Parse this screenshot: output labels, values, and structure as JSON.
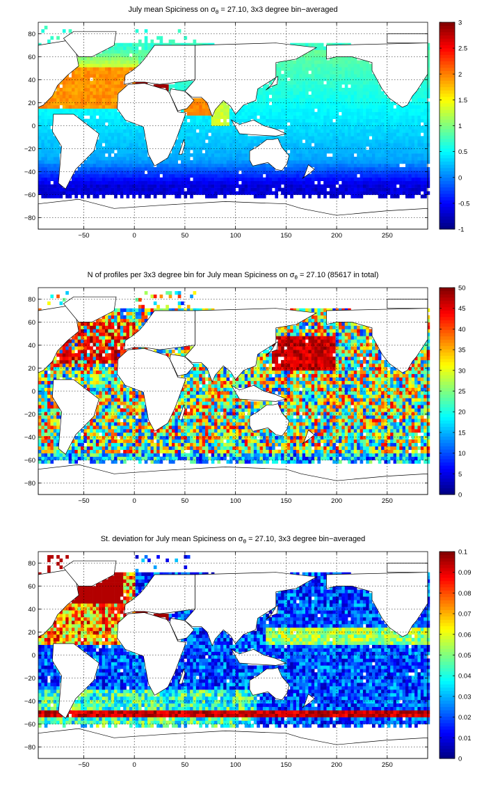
{
  "chart_data": [
    {
      "type": "heatmap",
      "title_prefix": "July mean Spiciness on ",
      "title_symbol": "σ",
      "title_subscript": "θ",
      "title_suffix": " = 27.10, 3x3 degree bin−averaged",
      "xlim": [
        -95,
        290
      ],
      "ylim": [
        -90,
        90
      ],
      "xticks": [
        -50,
        0,
        50,
        100,
        150,
        200,
        250
      ],
      "yticks": [
        -80,
        -60,
        -40,
        -20,
        0,
        20,
        40,
        60,
        80
      ],
      "colorbar": {
        "min": -1,
        "max": 3,
        "ticks": [
          "3",
          "2.5",
          "2",
          "1.5",
          "1",
          "0.5",
          "0",
          "-0.5",
          "-1"
        ]
      },
      "colormap": "jet",
      "grid": true,
      "description_values": {
        "north_atlantic": 2.0,
        "mediterranean": 3.0,
        "red_sea_arabian": 2.0,
        "pacific_interior": 0.3,
        "southern_ocean": -0.6
      }
    },
    {
      "type": "heatmap",
      "title_prefix": "N of profiles per 3x3 degree bin for July mean Spiciness on ",
      "title_symbol": "σ",
      "title_subscript": "θ",
      "title_suffix": " = 27.10 (85617 in total)",
      "xlim": [
        -95,
        290
      ],
      "ylim": [
        -90,
        90
      ],
      "xticks": [
        -50,
        0,
        50,
        100,
        150,
        200,
        250
      ],
      "yticks": [
        -80,
        -60,
        -40,
        -20,
        0,
        20,
        40,
        60,
        80
      ],
      "colorbar": {
        "min": 0,
        "max": 50,
        "ticks": [
          "50",
          "45",
          "40",
          "35",
          "30",
          "25",
          "20",
          "15",
          "10",
          "5",
          "0"
        ]
      },
      "colormap": "jet",
      "grid": true,
      "total_profiles": 85617
    },
    {
      "type": "heatmap",
      "title_prefix": "St. deviation for July mean Spiciness on ",
      "title_symbol": "σ",
      "title_subscript": "θ",
      "title_suffix": " = 27.10, 3x3 degree bin−averaged",
      "xlim": [
        -95,
        290
      ],
      "ylim": [
        -90,
        90
      ],
      "xticks": [
        -50,
        0,
        50,
        100,
        150,
        200,
        250
      ],
      "yticks": [
        -80,
        -60,
        -40,
        -20,
        0,
        20,
        40,
        60,
        80
      ],
      "colorbar": {
        "min": 0,
        "max": 0.1,
        "ticks": [
          "0.1",
          "0.09",
          "0.08",
          "0.07",
          "0.06",
          "0.05",
          "0.04",
          "0.03",
          "0.02",
          "0.01",
          "0"
        ]
      },
      "colormap": "jet",
      "grid": true
    }
  ]
}
